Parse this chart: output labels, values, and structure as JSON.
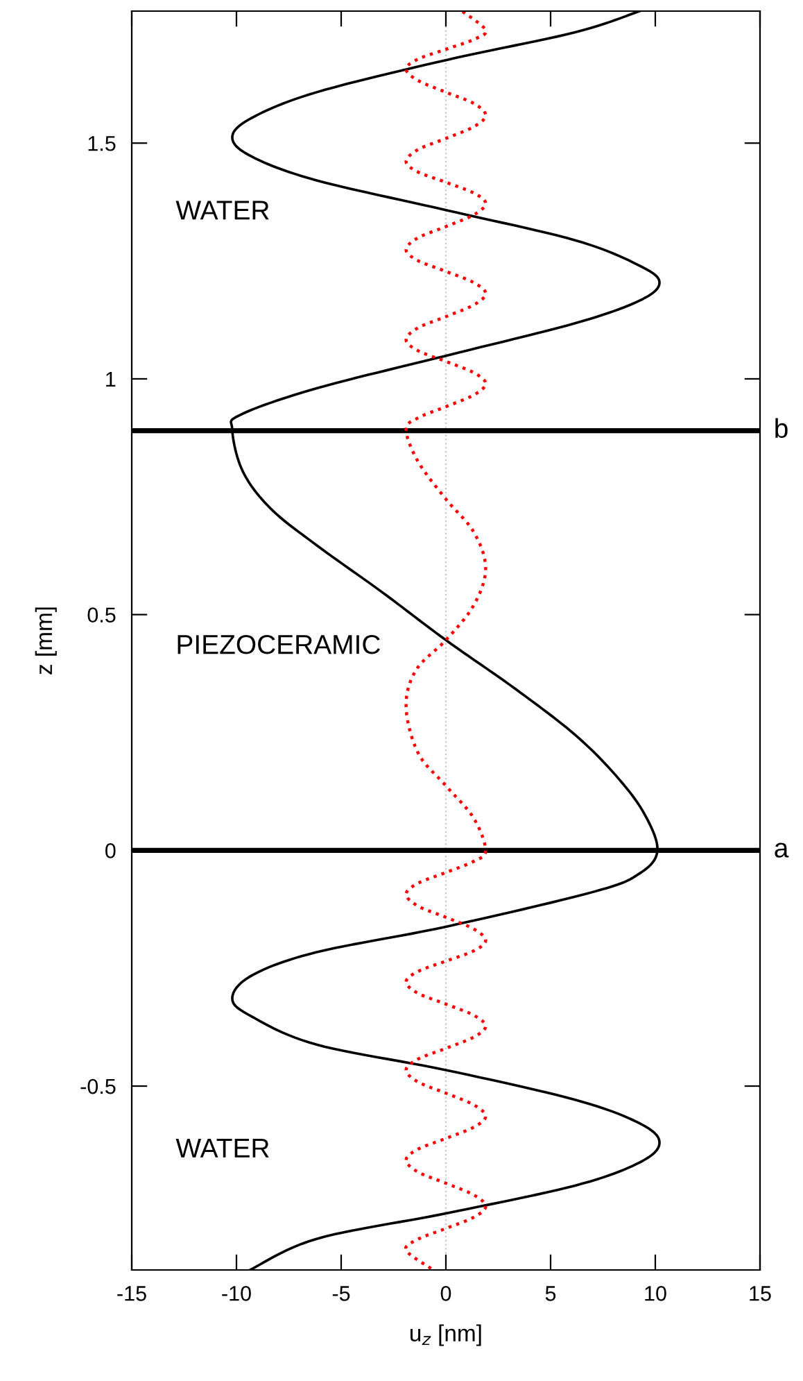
{
  "chart_data": {
    "type": "line",
    "xlabel": "u$_{z}$ [nm]",
    "ylabel": "z [mm]",
    "xlim": [
      -15,
      15
    ],
    "xticks": [
      -15,
      -10,
      -5,
      0,
      5,
      10,
      15
    ],
    "ylim": [
      -0.89,
      1.78
    ],
    "yticks": [
      -0.5,
      0,
      0.5,
      1,
      1.5
    ],
    "grid": false,
    "legend": false,
    "marker": "none",
    "annotations": [
      "WATER",
      "PIEZOCERAMIC",
      "WATER"
    ],
    "ref_lines": [
      {
        "axis": "x",
        "value": 0,
        "color": "#c8c8c8",
        "line_style": "dotted"
      },
      {
        "axis": "y",
        "value": 0,
        "label": "a",
        "color": "#000000",
        "line_style": "solid"
      },
      {
        "axis": "y",
        "value": 0.89,
        "label": "b",
        "color": "#000000",
        "line_style": "solid"
      }
    ],
    "series": [
      {
        "color": "#000000",
        "line_style": "solid",
        "x": [
          -9.36,
          -6.17,
          0,
          6.17,
          9.25,
          10.2,
          9.25,
          6.17,
          0,
          -6.17,
          -9.25,
          -10.2,
          -9.25,
          -6.17,
          0,
          7.05,
          9.25,
          10.1,
          9.47,
          8.15,
          6.17,
          3.3,
          0,
          -3.09,
          -6.17,
          -8.37,
          -9.7,
          -10.2,
          -9.8,
          -6.17,
          0,
          6.17,
          9.25,
          10.2,
          9.25,
          6.17,
          0,
          -6.17,
          -9.25,
          -10.2,
          -9.25,
          -6.17,
          0,
          6.17,
          9.25
        ],
        "values": [
          -0.89,
          -0.824,
          -0.77,
          -0.711,
          -0.662,
          -0.62,
          -0.579,
          -0.529,
          -0.466,
          -0.412,
          -0.353,
          -0.314,
          -0.265,
          -0.216,
          -0.162,
          -0.088,
          -0.049,
          0,
          0.078,
          0.157,
          0.245,
          0.343,
          0.446,
          0.549,
          0.647,
          0.725,
          0.804,
          0.892,
          0.924,
          0.98,
          1.049,
          1.118,
          1.166,
          1.204,
          1.24,
          1.294,
          1.358,
          1.421,
          1.471,
          1.512,
          1.554,
          1.608,
          1.676,
          1.735,
          1.78
        ]
      },
      {
        "color": "#ff0000",
        "line_style": "dotted",
        "x": [
          -0.71,
          -1.9,
          -1.34,
          0,
          1.34,
          1.9,
          1.34,
          0,
          -1.34,
          -1.9,
          -1.34,
          0,
          1.34,
          1.9,
          1.34,
          0,
          -1.34,
          -1.9,
          -1.34,
          0,
          1.34,
          1.9,
          1.34,
          0,
          -1.34,
          -1.9,
          -1.34,
          0,
          1.34,
          1.9,
          1.34,
          0,
          -1.34,
          -1.9,
          -1.34,
          0,
          1.34,
          1.9,
          1.32,
          0,
          -1.32,
          -1.9,
          -1.43,
          0,
          1.32,
          1.9,
          1.32,
          0,
          -1.32,
          -1.9,
          -1.34,
          0,
          1.34,
          1.9,
          1.34,
          0,
          -1.34,
          -1.9,
          -1.34,
          0,
          1.34,
          1.9,
          1.34,
          0,
          -1.34,
          -1.9,
          -1.34,
          0,
          1.34,
          1.9,
          1.34,
          0,
          -1.34,
          -1.9,
          -1.34,
          0,
          1.34,
          1.9,
          1.34,
          0,
          -1.34,
          -1.9,
          -1.34,
          0,
          1.34,
          1.9,
          0.77
        ],
        "values": [
          -0.887,
          -0.848,
          -0.825,
          -0.802,
          -0.778,
          -0.755,
          -0.731,
          -0.706,
          -0.682,
          -0.657,
          -0.634,
          -0.611,
          -0.587,
          -0.564,
          -0.54,
          -0.515,
          -0.491,
          -0.466,
          -0.443,
          -0.42,
          -0.396,
          -0.373,
          -0.35,
          -0.326,
          -0.303,
          -0.279,
          -0.257,
          -0.235,
          -0.213,
          -0.191,
          -0.167,
          -0.142,
          -0.118,
          -0.093,
          -0.07,
          -0.047,
          -0.023,
          0,
          0.069,
          0.137,
          0.206,
          0.304,
          0.382,
          0.446,
          0.519,
          0.598,
          0.676,
          0.745,
          0.824,
          0.892,
          0.917,
          0.941,
          0.966,
          0.99,
          1.013,
          1.037,
          1.06,
          1.083,
          1.108,
          1.132,
          1.157,
          1.181,
          1.204,
          1.228,
          1.251,
          1.274,
          1.299,
          1.323,
          1.348,
          1.372,
          1.394,
          1.417,
          1.439,
          1.461,
          1.486,
          1.51,
          1.535,
          1.559,
          1.584,
          1.608,
          1.633,
          1.657,
          1.678,
          1.699,
          1.72,
          1.74,
          1.78
        ]
      }
    ]
  }
}
